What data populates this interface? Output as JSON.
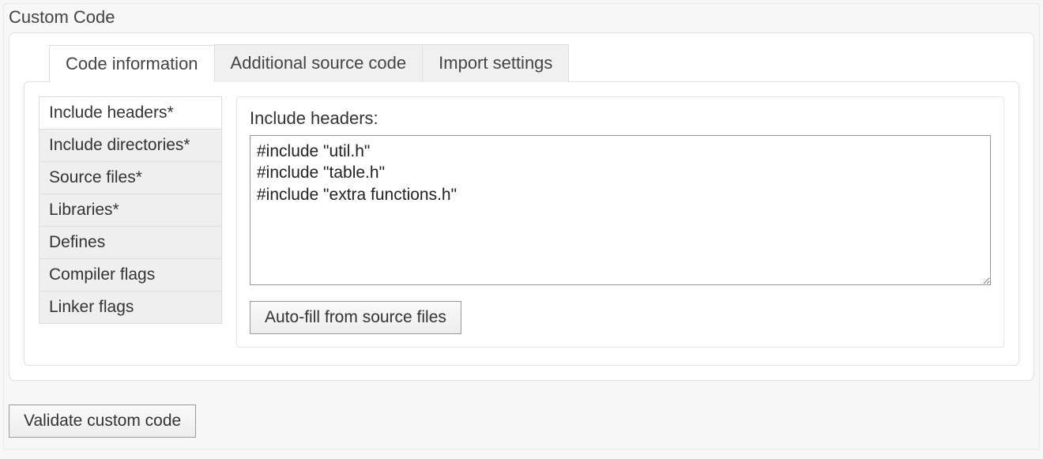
{
  "panel": {
    "title": "Custom Code"
  },
  "tabs": [
    {
      "label": "Code information",
      "active": true
    },
    {
      "label": "Additional source code",
      "active": false
    },
    {
      "label": "Import settings",
      "active": false
    }
  ],
  "sidebar": {
    "items": [
      {
        "label": "Include headers*",
        "active": true
      },
      {
        "label": "Include directories*",
        "active": false
      },
      {
        "label": "Source files*",
        "active": false
      },
      {
        "label": "Libraries*",
        "active": false
      },
      {
        "label": "Defines",
        "active": false
      },
      {
        "label": "Compiler flags",
        "active": false
      },
      {
        "label": "Linker flags",
        "active": false
      }
    ]
  },
  "editor": {
    "label": "Include headers:",
    "value": "#include \"util.h\"\n#include \"table.h\"\n#include \"extra functions.h\"",
    "autofill_button": "Auto-fill from source files"
  },
  "footer": {
    "validate_button": "Validate custom code"
  },
  "colors": {
    "page_bg": "#f7f7f7",
    "panel_border": "#e8e8e8",
    "box_border": "#e0e0e0",
    "tab_inactive_bg": "#f0f0f0",
    "tab_active_bg": "#ffffff",
    "side_inactive_bg": "#efefef",
    "side_active_bg": "#ffffff",
    "input_border": "#999999",
    "text_color": "#333333"
  }
}
